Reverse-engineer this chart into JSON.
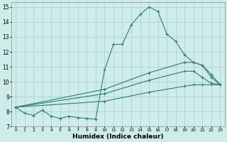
{
  "title": "",
  "xlabel": "Humidex (Indice chaleur)",
  "ylabel": "",
  "bg_color": "#ceecea",
  "line_color": "#2e7d6e",
  "grid_color": "#aed4ce",
  "xlim": [
    -0.5,
    23.5
  ],
  "ylim": [
    7,
    15.3
  ],
  "yticks": [
    7,
    8,
    9,
    10,
    11,
    12,
    13,
    14,
    15
  ],
  "xticks": [
    0,
    1,
    2,
    3,
    4,
    5,
    6,
    7,
    8,
    9,
    10,
    11,
    12,
    13,
    14,
    15,
    16,
    17,
    18,
    19,
    20,
    21,
    22,
    23
  ],
  "lines": [
    {
      "x": [
        0,
        1,
        2,
        3,
        4,
        5,
        6,
        7,
        8,
        9,
        10,
        11,
        12,
        13,
        14,
        15,
        16,
        17,
        18,
        19,
        20,
        21,
        22,
        23
      ],
      "y": [
        8.3,
        7.9,
        7.75,
        8.1,
        7.7,
        7.55,
        7.7,
        7.6,
        7.55,
        7.5,
        10.8,
        12.5,
        12.5,
        13.8,
        14.5,
        15.0,
        14.7,
        13.2,
        12.7,
        11.8,
        11.3,
        11.1,
        10.5,
        9.8
      ]
    },
    {
      "x": [
        0,
        10,
        15,
        19,
        20,
        21,
        22,
        23
      ],
      "y": [
        8.3,
        9.5,
        10.6,
        11.3,
        11.3,
        11.1,
        10.3,
        9.8
      ]
    },
    {
      "x": [
        0,
        10,
        15,
        19,
        20,
        21,
        22,
        23
      ],
      "y": [
        8.3,
        9.2,
        10.1,
        10.7,
        10.7,
        10.3,
        9.9,
        9.8
      ]
    },
    {
      "x": [
        0,
        10,
        15,
        19,
        20,
        21,
        22,
        23
      ],
      "y": [
        8.3,
        8.7,
        9.3,
        9.7,
        9.8,
        9.8,
        9.8,
        9.8
      ]
    }
  ]
}
